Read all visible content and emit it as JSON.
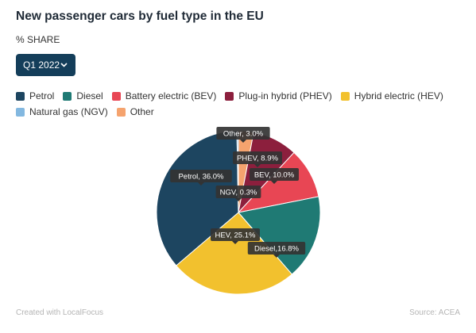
{
  "title": "New passenger cars by fuel type in the EU",
  "subtitle": "% SHARE",
  "dropdown": {
    "selected": "Q1 2022"
  },
  "legend": [
    {
      "label": "Petrol",
      "color": "#1d4560"
    },
    {
      "label": "Diesel",
      "color": "#1f7a74"
    },
    {
      "label": "Battery electric (BEV)",
      "color": "#e84654"
    },
    {
      "label": "Plug-in hybrid (PHEV)",
      "color": "#8c1f3d"
    },
    {
      "label": "Hybrid electric (HEV)",
      "color": "#f2c12e"
    },
    {
      "label": "Natural gas (NGV)",
      "color": "#83b8e0"
    },
    {
      "label": "Other",
      "color": "#f5a36e"
    }
  ],
  "chart_data": {
    "type": "pie",
    "start_angle_deg": 0,
    "slices": [
      {
        "name": "Other",
        "value": 3.0,
        "color": "#f5a36e",
        "label": "Other, 3.0%"
      },
      {
        "name": "PHEV",
        "value": 8.9,
        "color": "#8c1f3d",
        "label": "PHEV, 8.9%"
      },
      {
        "name": "BEV",
        "value": 10.0,
        "color": "#e84654",
        "label": "BEV, 10.0%"
      },
      {
        "name": "Diesel",
        "value": 16.8,
        "color": "#1f7a74",
        "label": "Diesel,16.8%"
      },
      {
        "name": "HEV",
        "value": 25.1,
        "color": "#f2c12e",
        "label": "HEV, 25.1%"
      },
      {
        "name": "Petrol",
        "value": 36.0,
        "color": "#1d4560",
        "label": "Petrol, 36.0%"
      },
      {
        "name": "NGV",
        "value": 0.3,
        "color": "#83b8e0",
        "label": "NGV, 0.3%"
      }
    ]
  },
  "footer": {
    "left": "Created with LocalFocus",
    "right": "Source:  ACEA"
  }
}
